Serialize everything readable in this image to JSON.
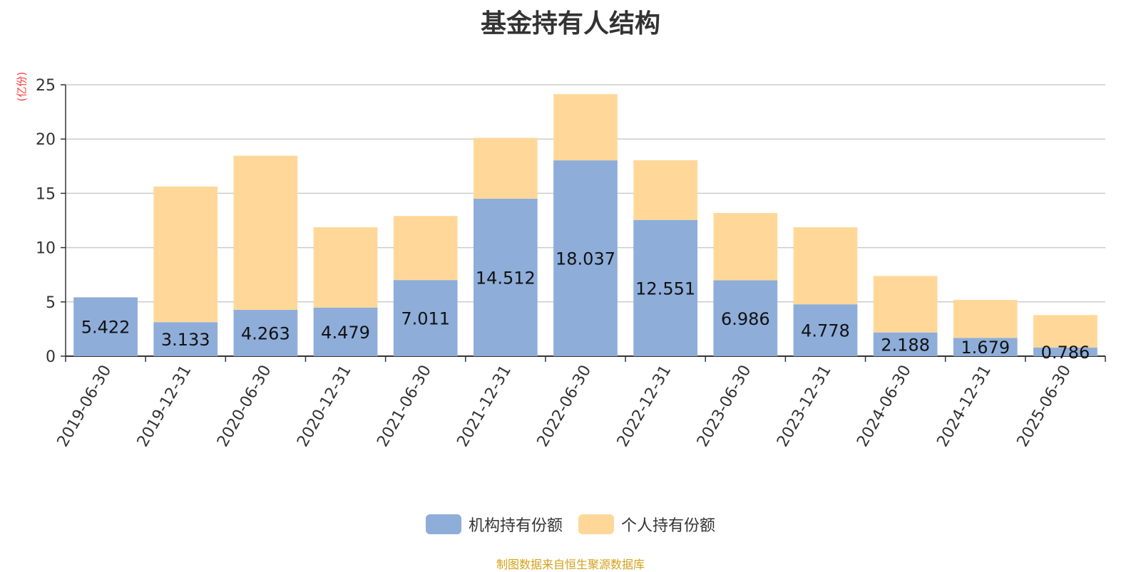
{
  "chart_data": {
    "type": "bar",
    "stacked": true,
    "title": "基金持有人结构",
    "ylabel": "(亿份)",
    "ylim": [
      0,
      25
    ],
    "yticks": [
      0,
      5,
      10,
      15,
      20,
      25
    ],
    "grid": true,
    "legend_position": "bottom-center",
    "categories": [
      "2019-06-30",
      "2019-12-31",
      "2020-06-30",
      "2020-12-31",
      "2021-06-30",
      "2021-12-31",
      "2022-06-30",
      "2022-12-31",
      "2023-06-30",
      "2023-12-31",
      "2024-06-30",
      "2024-12-31",
      "2025-06-30"
    ],
    "series": [
      {
        "name": "机构持有份额",
        "color": "#8eadd9",
        "values": [
          5.422,
          3.133,
          4.263,
          4.479,
          7.011,
          14.512,
          18.037,
          12.551,
          6.986,
          4.778,
          2.188,
          1.679,
          0.786
        ]
      },
      {
        "name": "个人持有份额",
        "color": "#ffd899",
        "values": [
          0.0,
          12.5,
          14.2,
          7.4,
          5.9,
          5.6,
          6.1,
          5.5,
          6.2,
          7.1,
          5.2,
          3.5,
          3.0
        ]
      }
    ]
  },
  "source_note": "制图数据来自恒生聚源数据库"
}
